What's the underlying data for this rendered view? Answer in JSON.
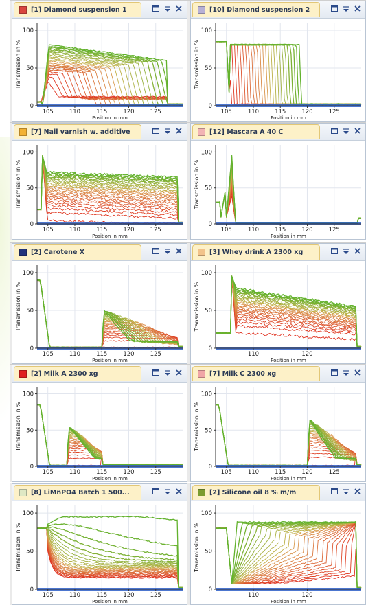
{
  "panels": [
    {
      "title": "[1] Diamond suspension 1",
      "swatch": "#d9463e",
      "xticks": [
        105,
        110,
        115,
        120,
        125
      ],
      "xmin": 103,
      "xmax": 130,
      "yticks": [
        0,
        50,
        100
      ],
      "ylabel": "Transmission in %",
      "xlabel": "Position in mm",
      "chart_data": {
        "type": "line",
        "profile": "sediment-front",
        "params": {
          "left": 104,
          "right": 127,
          "top": 80,
          "topR": 60,
          "front": 127,
          "settle": 2
        }
      }
    },
    {
      "title": "[10] Diamond suspension 2",
      "swatch": "#b7b0d6",
      "xticks": [
        105,
        110,
        115,
        120,
        125
      ],
      "xmin": 103,
      "xmax": 130,
      "yticks": [
        0,
        50,
        100
      ],
      "ylabel": "Transmission in %",
      "xlabel": "Position in mm",
      "chart_data": {
        "type": "line",
        "profile": "clarifying-band",
        "params": {
          "left": 105,
          "right": 118.5,
          "top": 85,
          "topR": 85,
          "front": 118.5
        }
      }
    },
    {
      "title": "[7] Nail varnish w. additive",
      "swatch": "#f2b134",
      "xticks": [
        105,
        110,
        115,
        120,
        125
      ],
      "xmin": 103,
      "xmax": 130,
      "yticks": [
        0,
        50,
        100
      ],
      "ylabel": "Transmission in %",
      "xlabel": "Position in mm",
      "chart_data": {
        "type": "line",
        "profile": "slow-clear",
        "params": {
          "left": 104,
          "right": 129,
          "top": 72,
          "topR": 65,
          "base": 5
        }
      }
    },
    {
      "title": "[12] Mascara A 40 C",
      "swatch": "#f2b4b4",
      "xticks": [
        105,
        110,
        115,
        120,
        125
      ],
      "xmin": 103,
      "xmax": 130,
      "yticks": [
        0,
        50,
        100
      ],
      "ylabel": "Transmission in %",
      "xlabel": "Position in mm",
      "chart_data": {
        "type": "line",
        "profile": "opaque-spike",
        "params": {
          "peak": 106,
          "height": 95
        }
      }
    },
    {
      "title": "[2] Carotene X",
      "swatch": "#23337a",
      "xticks": [
        105,
        110,
        115,
        120,
        125
      ],
      "xmin": 103,
      "xmax": 130,
      "yticks": [
        0,
        50,
        100
      ],
      "ylabel": "Transmission in %",
      "xlabel": "Position in mm",
      "chart_data": {
        "type": "line",
        "profile": "step-window",
        "params": {
          "a": 115,
          "b": 129,
          "top": 50,
          "topR": 45,
          "early": 90
        }
      }
    },
    {
      "title": "[3] Whey drink A 2300 xg",
      "swatch": "#f2c38a",
      "xticks": [
        110,
        120
      ],
      "xmin": 103,
      "xmax": 130,
      "yticks": [
        0,
        50,
        100
      ],
      "ylabel": "Transmission in %",
      "xlabel": "Position in mm",
      "chart_data": {
        "type": "line",
        "profile": "slow-clear",
        "params": {
          "left": 106,
          "right": 129,
          "top": 80,
          "topR": 55,
          "base": 20
        }
      }
    },
    {
      "title": "[2] Milk A  2300 xg",
      "swatch": "#e02020",
      "xticks": [
        105,
        110,
        115,
        120,
        125
      ],
      "xmin": 103,
      "xmax": 130,
      "yticks": [
        0,
        50,
        100
      ],
      "ylabel": "Transmission in %",
      "xlabel": "Position in mm",
      "chart_data": {
        "type": "line",
        "profile": "step-window",
        "params": {
          "a": 108.5,
          "b": 115,
          "top": 55,
          "topR": 55,
          "early": 85
        }
      }
    },
    {
      "title": "[7] Milk C  2300 xg",
      "swatch": "#f0a6a6",
      "xticks": [
        105,
        110,
        115,
        120,
        125
      ],
      "xmin": 103,
      "xmax": 130,
      "yticks": [
        0,
        50,
        100
      ],
      "ylabel": "Transmission in %",
      "xlabel": "Position in mm",
      "chart_data": {
        "type": "line",
        "profile": "step-window",
        "params": {
          "a": 120,
          "b": 129,
          "top": 65,
          "topR": 55,
          "early": 85
        }
      }
    },
    {
      "title": "[8] LiMnPO4 Batch 1 500...",
      "swatch": "#dfe8c4",
      "xticks": [
        105,
        110,
        115,
        120,
        125
      ],
      "xmin": 103,
      "xmax": 130,
      "yticks": [
        0,
        50,
        100
      ],
      "ylabel": "Transmission in %",
      "xlabel": "Position in mm",
      "chart_data": {
        "type": "line",
        "profile": "decay",
        "params": {
          "left": 105,
          "right": 129,
          "top": 85,
          "base": 15
        }
      }
    },
    {
      "title": "[2] Silicone oil 8 % m/m",
      "swatch": "#7c9c30",
      "xticks": [
        110,
        120
      ],
      "xmin": 103,
      "xmax": 130,
      "yticks": [
        0,
        50,
        100
      ],
      "ylabel": "Transmission in %",
      "xlabel": "Position in mm",
      "chart_data": {
        "type": "line",
        "profile": "rising-front",
        "params": {
          "left": 106,
          "right": 129,
          "top": 88
        }
      }
    }
  ],
  "colors": {
    "early": "#e0301e",
    "late": "#62b22d",
    "bluebar": "#2d5ec7"
  }
}
